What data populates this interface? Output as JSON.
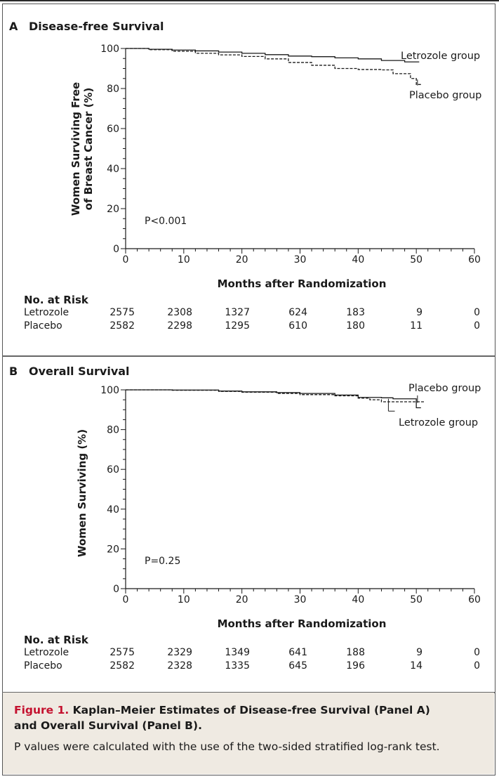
{
  "chart_data": [
    {
      "type": "line",
      "panel": "A",
      "title": "Disease-free Survival",
      "xlabel": "Months after Randomization",
      "ylabel_line1": "Women Surviving Free",
      "ylabel_line2": "of Breast Cancer (%)",
      "xlim": [
        0,
        60
      ],
      "ylim": [
        0,
        100
      ],
      "xticks": [
        0,
        10,
        20,
        30,
        40,
        50,
        60
      ],
      "yticks": [
        0,
        20,
        40,
        60,
        80,
        100
      ],
      "annotation": "P<0.001",
      "series": [
        {
          "name": "Letrozole group",
          "style": "solid",
          "x": [
            0,
            4,
            8,
            12,
            16,
            20,
            24,
            28,
            32,
            36,
            40,
            44,
            48,
            50.5
          ],
          "y": [
            100,
            99.6,
            99.2,
            98.8,
            98.2,
            97.6,
            96.9,
            96.2,
            95.9,
            95.3,
            94.8,
            94.0,
            93.3,
            93.3
          ]
        },
        {
          "name": "Placebo group",
          "style": "dashed",
          "x": [
            0,
            4,
            8,
            12,
            16,
            20,
            24,
            28,
            32,
            36,
            40,
            44,
            46,
            48,
            49,
            50,
            51
          ],
          "y": [
            100,
            99.4,
            98.6,
            97.6,
            96.8,
            96.0,
            94.8,
            93.0,
            91.6,
            90.0,
            89.5,
            89.3,
            87.4,
            87.4,
            85.0,
            82.0,
            82.0
          ]
        }
      ],
      "at_risk": {
        "header": "No. at Risk",
        "months": [
          0,
          10,
          20,
          30,
          40,
          50,
          60
        ],
        "rows": [
          {
            "label": "Letrozole",
            "values": [
              "2575",
              "2308",
              "1327",
              "624",
              "183",
              "9",
              "0"
            ]
          },
          {
            "label": "Placebo",
            "values": [
              "2582",
              "2298",
              "1295",
              "610",
              "180",
              "11",
              "0"
            ]
          }
        ]
      }
    },
    {
      "type": "line",
      "panel": "B",
      "title": "Overall Survival",
      "xlabel": "Months after Randomization",
      "ylabel_line1": "Women Surviving (%)",
      "ylabel_line2": "",
      "xlim": [
        0,
        60
      ],
      "ylim": [
        0,
        100
      ],
      "xticks": [
        0,
        10,
        20,
        30,
        40,
        50,
        60
      ],
      "yticks": [
        0,
        20,
        40,
        60,
        80,
        100
      ],
      "annotation": "P=0.25",
      "series": [
        {
          "name": "Letrozole group",
          "style": "solid",
          "x": [
            0,
            8,
            16,
            20,
            26,
            30,
            36,
            40,
            44,
            46,
            49,
            50,
            50.8
          ],
          "y": [
            100,
            99.9,
            99.4,
            99.0,
            98.6,
            98.2,
            97.4,
            96.2,
            96.0,
            95.5,
            95.5,
            91.0,
            91.0
          ]
        },
        {
          "name": "Placebo group",
          "style": "dashed",
          "x": [
            0,
            8,
            16,
            20,
            26,
            30,
            36,
            40,
            42,
            44,
            50,
            51.5
          ],
          "y": [
            100,
            99.8,
            99.2,
            98.8,
            98.2,
            97.6,
            97.0,
            95.8,
            95.0,
            94.0,
            94.0,
            94.0
          ]
        }
      ],
      "at_risk": {
        "header": "No. at Risk",
        "months": [
          0,
          10,
          20,
          30,
          40,
          50,
          60
        ],
        "rows": [
          {
            "label": "Letrozole",
            "values": [
              "2575",
              "2329",
              "1349",
              "641",
              "188",
              "9",
              "0"
            ]
          },
          {
            "label": "Placebo",
            "values": [
              "2582",
              "2328",
              "1335",
              "645",
              "196",
              "14",
              "0"
            ]
          }
        ]
      }
    }
  ],
  "caption": {
    "figure_label": "Figure 1.",
    "title_line1": "Kaplan–Meier Estimates of Disease-free Survival (Panel A)",
    "title_line2": "and Overall Survival (Panel B).",
    "body": "P values were calculated with the use of the two-sided stratified log-rank test."
  },
  "colors": {
    "caption_bg": "#efeae2",
    "figure_label": "#c4122f",
    "line": "#1a1a1a"
  }
}
